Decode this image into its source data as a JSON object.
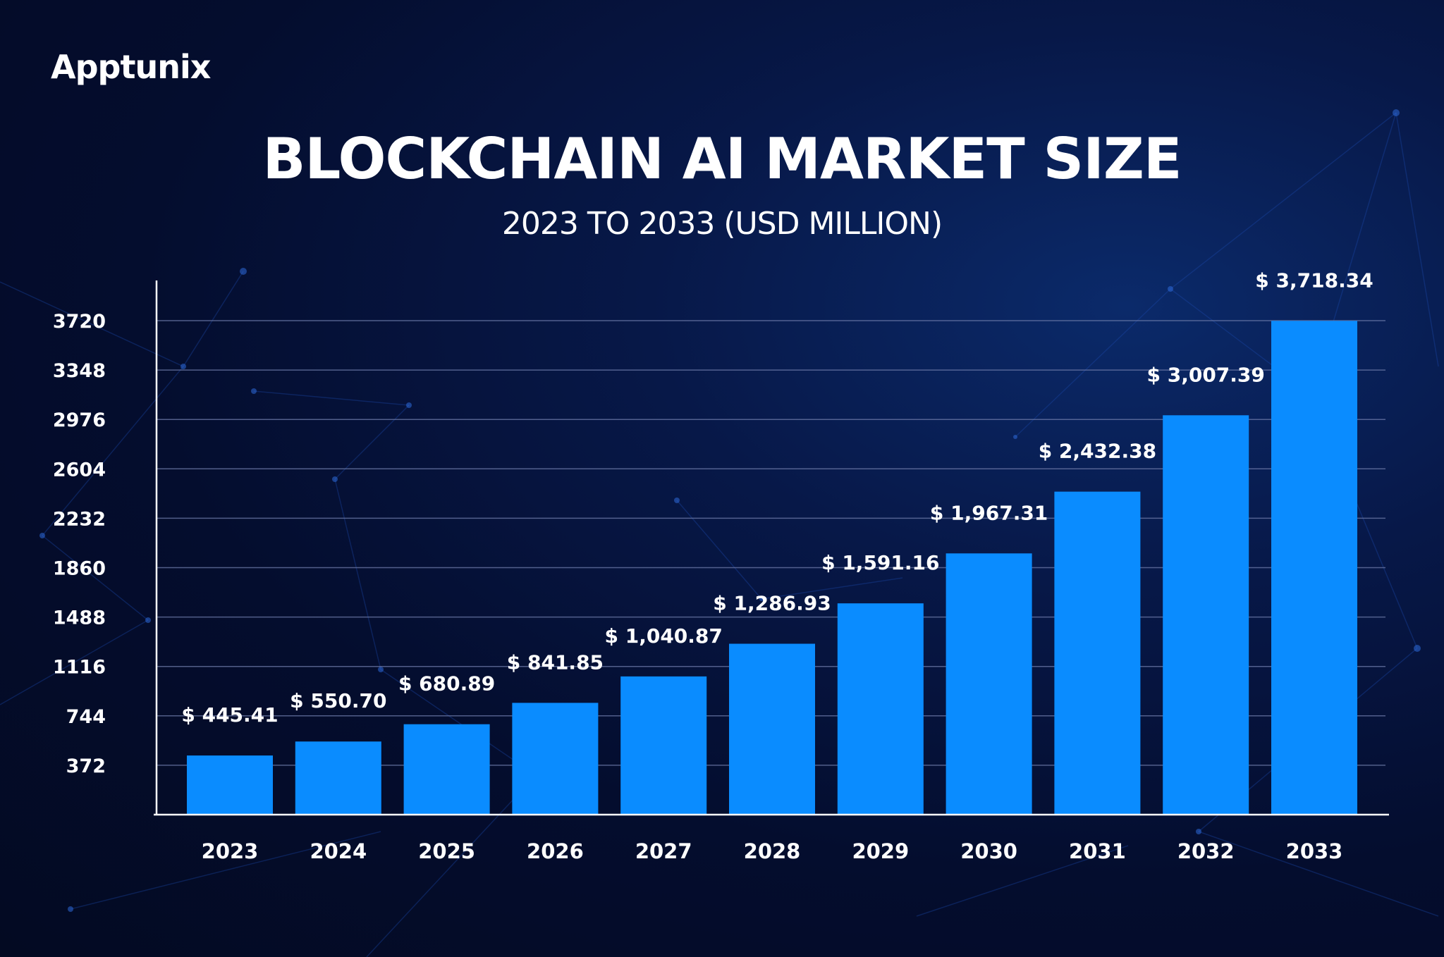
{
  "brand": {
    "logo_text": "Apptunix"
  },
  "colors": {
    "bar": "#0a8cff",
    "grid": "#6c7aa8",
    "axis": "#ffffff",
    "background": "#040d2e"
  },
  "chart_data": {
    "type": "bar",
    "title": "BLOCKCHAIN AI MARKET SIZE",
    "subtitle": "2023 TO 2033 (USD MILLION)",
    "categories": [
      "2023",
      "2024",
      "2025",
      "2026",
      "2027",
      "2028",
      "2029",
      "2030",
      "2031",
      "2032",
      "2033"
    ],
    "values": [
      445.41,
      550.7,
      680.89,
      841.85,
      1040.87,
      1286.93,
      1591.16,
      1967.31,
      2432.38,
      3007.39,
      3718.34
    ],
    "value_labels": [
      "$ 445.41",
      "$ 550.70",
      "$ 680.89",
      "$ 841.85",
      "$ 1,040.87",
      "$ 1,286.93",
      "$ 1,591.16",
      "$ 1,967.31",
      "$ 2,432.38",
      "$ 3,007.39",
      "$ 3,718.34"
    ],
    "yticks": [
      372,
      744,
      1116,
      1488,
      1860,
      2232,
      2604,
      2976,
      3348,
      3720
    ],
    "ylim": [
      0,
      3720
    ],
    "grid": true,
    "legend": "none"
  }
}
